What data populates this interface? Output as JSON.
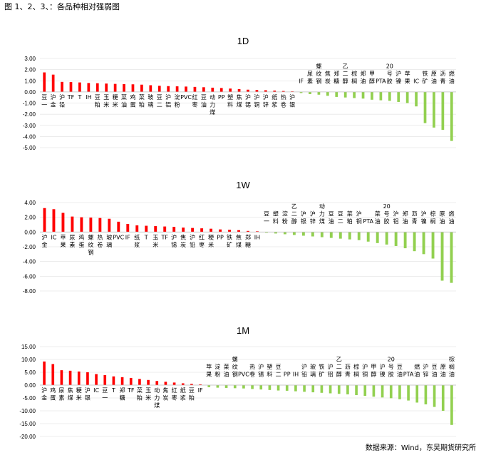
{
  "caption": "图 1、2、3、：各品种相对强弱图",
  "source": "数据来源：Wind，东吴期货研究所",
  "colors": {
    "up": "#ff0000",
    "down": "#92d050",
    "axis": "#bfbfbf",
    "grid": "#d9d9d9"
  },
  "chart_data": [
    {
      "type": "bar",
      "title": "1D",
      "ylim": [
        -5,
        3
      ],
      "yticks": [
        "3.00",
        "2.00",
        "1.00",
        "0.00",
        "-1.00",
        "-2.00",
        "-3.00",
        "-4.00",
        "-5.00"
      ],
      "grid": true,
      "categories": [
        "豆一",
        "沪金",
        "沪铅",
        "TF",
        "T",
        "IH",
        "豆粕",
        "玉米",
        "粳米",
        "菜油",
        "鸡蛋",
        "菜粕",
        "玻璃",
        "豆二",
        "沪铝",
        "淀粉",
        "PVC",
        "红枣",
        "豆油",
        "动力煤",
        "PP",
        "塑料",
        "焦煤",
        "沪锡",
        "沪铜",
        "沪锌",
        "纸浆",
        "热卷",
        "沪银",
        "IF",
        "尿素",
        "螺纹钢",
        "焦炭",
        "郑糖",
        "乙二醇",
        "棕榈",
        "郑油",
        "甲醇",
        "PTA",
        "20号胶",
        "沪镍",
        "苹果",
        "IC",
        "铁矿",
        "原油",
        "沥青",
        "燃油"
      ],
      "values": [
        1.75,
        1.55,
        0.9,
        0.88,
        0.85,
        0.8,
        0.78,
        0.75,
        0.72,
        0.7,
        0.68,
        0.65,
        0.6,
        0.55,
        0.52,
        0.5,
        0.48,
        0.45,
        0.42,
        0.38,
        0.35,
        0.3,
        0.25,
        0.2,
        0.17,
        0.15,
        0.12,
        0.08,
        0.05,
        -0.1,
        -0.2,
        -0.25,
        -0.35,
        -0.45,
        -0.5,
        -0.55,
        -0.6,
        -0.7,
        -0.75,
        -0.8,
        -0.9,
        -1.0,
        -1.3,
        -2.8,
        -3.2,
        -3.4,
        -4.4
      ]
    },
    {
      "type": "bar",
      "title": "1W",
      "ylim": [
        -8,
        4
      ],
      "yticks": [
        "4.00",
        "2.00",
        "0.00",
        "-2.00",
        "-4.00",
        "-6.00",
        "-8.00"
      ],
      "grid": true,
      "categories": [
        "沪金",
        "IC",
        "苹果",
        "尿素",
        "鸡蛋",
        "螺纹钢",
        "热卷",
        "玻璃",
        "PVC",
        "IF",
        "纸浆",
        "T",
        "玉米",
        "TF",
        "沪锡",
        "焦炭",
        "沪铅",
        "红枣",
        "粳米",
        "PP",
        "铁矿",
        "焦煤",
        "郑糖",
        "IH",
        "豆一",
        "塑料",
        "淀粉",
        "乙二醇",
        "沪银",
        "沪锌",
        "动力煤",
        "豆油",
        "豆二",
        "菜粕",
        "沪铜",
        "PTA",
        "菜油",
        "20号胶",
        "沪铝",
        "郑油",
        "沥青",
        "沪镍",
        "棕榈",
        "原油",
        "燃油"
      ],
      "values": [
        3.25,
        3.1,
        2.6,
        2.1,
        2.0,
        1.95,
        1.9,
        1.8,
        1.4,
        1.1,
        0.9,
        0.85,
        0.8,
        0.75,
        0.7,
        0.6,
        0.55,
        0.5,
        0.45,
        0.35,
        0.3,
        0.25,
        0.15,
        0.1,
        -0.1,
        -0.2,
        -0.3,
        -0.4,
        -0.5,
        -0.6,
        -0.7,
        -0.8,
        -0.9,
        -1.0,
        -1.1,
        -1.3,
        -1.5,
        -1.7,
        -1.9,
        -2.2,
        -2.6,
        -3.0,
        -3.6,
        -6.6,
        -6.9
      ]
    },
    {
      "type": "bar",
      "title": "1M",
      "ylim": [
        -20,
        15
      ],
      "yticks": [
        "15.00",
        "10.00",
        "5.00",
        "0.00",
        "-5.00",
        "-10.00",
        "-15.00",
        "-20.00"
      ],
      "grid": true,
      "categories": [
        "沪金",
        "鸡蛋",
        "尿素",
        "焦煤",
        "粳米",
        "沪银",
        "IC",
        "豆一",
        "T",
        "郑糖",
        "TF",
        "菜粕",
        "玉米",
        "动力煤",
        "焦炭",
        "红枣",
        "纸浆",
        "豆粕",
        "IF",
        "苹果",
        "淀粉",
        "菜油",
        "螺纹钢",
        "PVC",
        "热卷",
        "沪锡",
        "塑料",
        "豆二",
        "PP",
        "IH",
        "沪铅",
        "玻璃",
        "铁矿",
        "沪铝",
        "乙二醇",
        "沥青",
        "棕榈",
        "沪铜",
        "甲醇",
        "沪镍",
        "20号胶",
        "豆油",
        "PTA",
        "燃油",
        "沪锌",
        "豆油",
        "原油",
        "棕榈油"
      ],
      "values": [
        9.2,
        8.2,
        5.8,
        5.6,
        5.3,
        5.0,
        4.3,
        3.9,
        3.4,
        3.1,
        2.8,
        2.4,
        2.0,
        1.6,
        1.3,
        1.0,
        0.7,
        0.5,
        0.3,
        -0.8,
        -1.0,
        -1.1,
        -1.2,
        -1.3,
        -1.5,
        -1.7,
        -1.9,
        -2.1,
        -2.2,
        -2.4,
        -2.6,
        -2.8,
        -3.0,
        -3.2,
        -3.4,
        -3.6,
        -3.9,
        -4.2,
        -4.5,
        -4.8,
        -5.1,
        -5.5,
        -6.0,
        -6.8,
        -7.5,
        -8.5,
        -10.0,
        -15.5
      ]
    }
  ]
}
